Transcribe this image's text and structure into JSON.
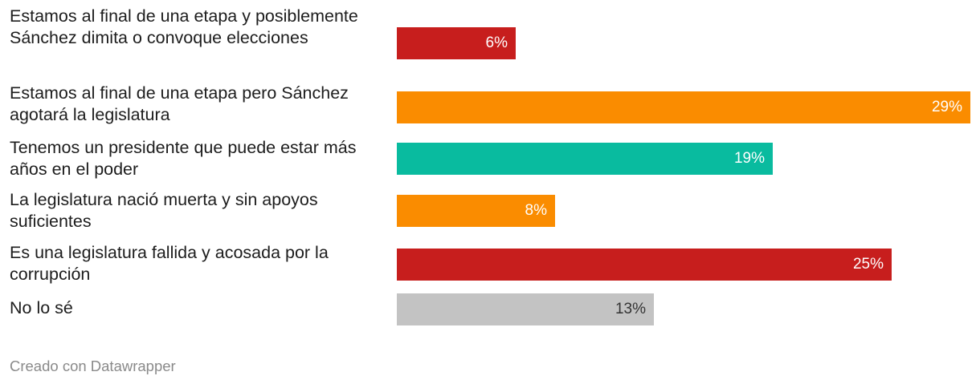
{
  "chart_data": {
    "type": "bar",
    "orientation": "horizontal",
    "categories": [
      "Estamos al final de una etapa y posiblemente Sánchez dimita o convoque elecciones",
      "Estamos al final de una etapa pero Sánchez agotará la legislatura",
      "Tenemos un presidente que puede estar más años en el poder",
      "La legislatura nació muerta y sin apoyos suficientes",
      "Es una legislatura fallida y acosada por la corrupción",
      "No lo sé"
    ],
    "values": [
      6,
      29,
      19,
      8,
      25,
      13
    ],
    "value_labels": [
      "6%",
      "29%",
      "19%",
      "8%",
      "25%",
      "13%"
    ],
    "colors": [
      "#c71e1d",
      "#fa8c00",
      "#09bb9f",
      "#fa8c00",
      "#c71e1d",
      "#c3c3c3"
    ],
    "value_label_colors": [
      "#ffffff",
      "#ffffff",
      "#ffffff",
      "#ffffff",
      "#ffffff",
      "#333333"
    ],
    "unit": "%",
    "xlim": [
      0,
      29
    ],
    "grid": false,
    "legend": "none"
  },
  "footer": {
    "credit": "Creado con Datawrapper"
  }
}
